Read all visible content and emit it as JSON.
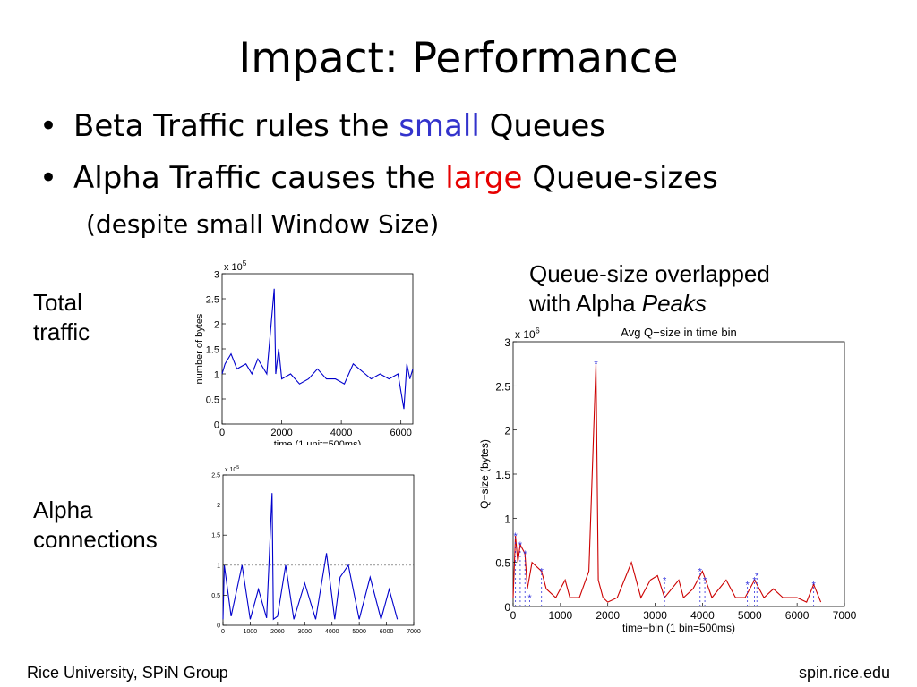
{
  "slide": {
    "title": "Impact: Performance",
    "bullets": [
      {
        "before": "Beta Traffic rules the ",
        "highlight": "small",
        "after": " Queues",
        "color": "#3333cc"
      },
      {
        "before": "Alpha Traffic causes the ",
        "highlight": "large",
        "after": " Queue-sizes",
        "color": "#e60000"
      }
    ],
    "sub_note": "(despite small Window Size)",
    "labels": {
      "total_traffic": [
        "Total",
        "traffic"
      ],
      "alpha_connections": [
        "Alpha",
        "connections"
      ],
      "queue_caption_line1": "Queue-size overlapped",
      "queue_caption_line2_prefix": "with Alpha ",
      "queue_caption_line2_italic": "Peaks"
    },
    "footer": {
      "left": "Rice University, SPiN Group",
      "right": "spin.rice.edu"
    }
  },
  "chart_data": [
    {
      "type": "line",
      "title": "",
      "xlabel": "time (1 unit=500ms)",
      "ylabel": "number of bytes",
      "y_exponent": "x 10^5",
      "xlim": [
        0,
        6400
      ],
      "ylim": [
        0,
        3
      ],
      "xticks": [
        0,
        2000,
        4000,
        6000
      ],
      "yticks": [
        0,
        0.5,
        1,
        1.5,
        2,
        2.5,
        3
      ],
      "color": "#0000cc",
      "series": [
        {
          "x": [
            0,
            100,
            300,
            500,
            800,
            1000,
            1200,
            1500,
            1750,
            1800,
            1900,
            2000,
            2300,
            2600,
            2900,
            3200,
            3500,
            3800,
            4100,
            4400,
            4800,
            5000,
            5300,
            5600,
            5900,
            6100,
            6200,
            6300,
            6400
          ],
          "values": [
            1.0,
            1.2,
            1.4,
            1.1,
            1.2,
            1.0,
            1.3,
            1.0,
            2.7,
            1.0,
            1.5,
            0.9,
            1.0,
            0.8,
            0.9,
            1.1,
            0.9,
            0.9,
            0.8,
            1.2,
            1.0,
            0.9,
            1.0,
            0.9,
            1.0,
            0.3,
            1.2,
            0.9,
            1.1
          ]
        }
      ]
    },
    {
      "type": "line",
      "title": "",
      "y_exponent": "x 10^5",
      "xlim": [
        0,
        7000
      ],
      "ylim": [
        0,
        2.5
      ],
      "xticks": [
        0,
        1000,
        2000,
        3000,
        4000,
        5000,
        6000,
        7000
      ],
      "yticks": [
        0,
        0.5,
        1,
        1.5,
        2,
        2.5
      ],
      "threshold": 1,
      "color": "#0000cc",
      "series": [
        {
          "x": [
            0,
            50,
            300,
            700,
            1000,
            1300,
            1600,
            1800,
            1850,
            2000,
            2300,
            2600,
            3000,
            3400,
            3800,
            4100,
            4300,
            4600,
            5000,
            5400,
            5800,
            6100,
            6400
          ],
          "values": [
            0.1,
            1.0,
            0.15,
            1.0,
            0.1,
            0.6,
            0.12,
            2.2,
            0.1,
            0.15,
            1.0,
            0.1,
            0.7,
            0.1,
            1.2,
            0.1,
            0.8,
            1.0,
            0.1,
            0.8,
            0.1,
            0.6,
            0.1
          ]
        }
      ]
    },
    {
      "type": "line",
      "title": "Avg Q−size in time bin",
      "xlabel": "time−bin (1 bin=500ms)",
      "ylabel": "Q−size (bytes)",
      "y_exponent": "x 10^6",
      "xlim": [
        0,
        7000
      ],
      "ylim": [
        0,
        3
      ],
      "xticks": [
        0,
        1000,
        2000,
        3000,
        4000,
        5000,
        6000,
        7000
      ],
      "yticks": [
        0,
        0.5,
        1,
        1.5,
        2,
        2.5,
        3
      ],
      "series": [
        {
          "color": "#cc0000",
          "x": [
            0,
            50,
            100,
            150,
            250,
            300,
            400,
            600,
            700,
            900,
            1100,
            1200,
            1400,
            1600,
            1750,
            1800,
            1900,
            2000,
            2200,
            2500,
            2700,
            2900,
            3050,
            3200,
            3500,
            3600,
            3800,
            4000,
            4200,
            4500,
            4700,
            4900,
            5100,
            5300,
            5500,
            5700,
            6000,
            6200,
            6350,
            6500
          ],
          "values": [
            0.1,
            0.8,
            0.5,
            0.7,
            0.6,
            0.2,
            0.5,
            0.4,
            0.2,
            0.1,
            0.3,
            0.1,
            0.1,
            0.4,
            2.75,
            0.3,
            0.1,
            0.05,
            0.1,
            0.5,
            0.1,
            0.3,
            0.35,
            0.1,
            0.3,
            0.1,
            0.2,
            0.4,
            0.1,
            0.3,
            0.1,
            0.1,
            0.3,
            0.1,
            0.2,
            0.1,
            0.1,
            0.05,
            0.25,
            0.05
          ]
        },
        {
          "color": "#3333dd",
          "marker": "*",
          "x": [
            50,
            150,
            250,
            350,
            600,
            1750,
            3200,
            3950,
            4050,
            4950,
            5100,
            5150,
            6350
          ],
          "values": [
            0.8,
            0.7,
            0.6,
            0.1,
            0.4,
            2.75,
            0.3,
            0.4,
            0.3,
            0.25,
            0.3,
            0.35,
            0.25
          ]
        }
      ]
    }
  ]
}
